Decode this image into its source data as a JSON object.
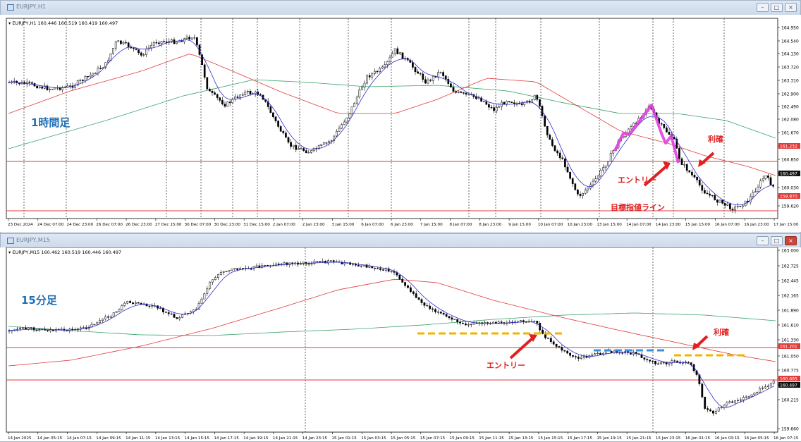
{
  "top_window": {
    "title": "EURJPY,H1",
    "symbol_info": "▾ EURJPY,H1  160.446 160.519 160.419 160.497",
    "timeframe_label": "1時間足",
    "price_axis": [
      "164.950",
      "164.540",
      "164.130",
      "163.720",
      "163.310",
      "162.900",
      "162.490",
      "162.080",
      "161.670",
      "161.232",
      "160.850",
      "160.497",
      "160.030",
      "159.870",
      "159.620"
    ],
    "highlighted_prices": {
      "red_line": "161.232",
      "current": "160.497",
      "target": "159.870"
    },
    "time_axis": [
      "23 Dec 2024",
      "24 Dec 07:00",
      "24 Dec 23:00",
      "26 Dec 07:00",
      "26 Dec 23:00",
      "27 Dec 15:00",
      "30 Dec 07:00",
      "30 Dec 23:00",
      "31 Dec 15:00",
      "2 Jan 07:00",
      "2 Jan 23:00",
      "3 Jan 15:00",
      "6 Jan 07:00",
      "6 Jan 23:00",
      "7 Jan 15:00",
      "8 Jan 07:00",
      "8 Jan 23:00",
      "9 Jan 15:00",
      "10 Jan 07:00",
      "10 Jan 23:00",
      "13 Jan 15:00",
      "14 Jan 07:00",
      "14 Jan 23:00",
      "15 Jan 15:00",
      "16 Jan 07:00",
      "16 Jan 23:00",
      "17 Jan 15:00"
    ],
    "annotations": {
      "entry": "エントリー",
      "take_profit": "利確",
      "target_line": "目標指値ライン"
    }
  },
  "bottom_window": {
    "title": "EURJPY,M15",
    "symbol_info": "▾ EURJPY,M15  160.462 160.519 160.446 160.497",
    "timeframe_label": "15分足",
    "price_axis": [
      "163.000",
      "162.725",
      "162.445",
      "162.165",
      "161.890",
      "161.610",
      "161.330",
      "161.201",
      "161.050",
      "160.775",
      "160.605",
      "160.497",
      "160.215",
      "159.660"
    ],
    "highlighted_prices": {
      "red_line": "161.201",
      "red_line_2": "160.605",
      "current": "160.497"
    },
    "time_axis": [
      "14 Jan 2025",
      "14 Jan 05:15",
      "14 Jan 07:15",
      "14 Jan 09:15",
      "14 Jan 11:15",
      "14 Jan 13:15",
      "14 Jan 15:15",
      "14 Jan 17:15",
      "14 Jan 19:15",
      "14 Jan 21:15",
      "14 Jan 23:15",
      "15 Jan 01:15",
      "15 Jan 03:15",
      "15 Jan 05:15",
      "15 Jan 07:15",
      "15 Jan 09:15",
      "15 Jan 11:15",
      "15 Jan 13:15",
      "15 Jan 15:15",
      "15 Jan 17:15",
      "15 Jan 19:15",
      "15 Jan 21:15",
      "15 Jan 23:15",
      "16 Jan 01:15",
      "16 Jan 03:15",
      "16 Jan 05:15",
      "16 Jan 07:15"
    ],
    "annotations": {
      "entry": "エントリー",
      "take_profit": "利確"
    }
  },
  "colors": {
    "ma_fast": "#2b2bcc",
    "ma_slow": "#e23a3a",
    "ma_long": "#3aa36a",
    "highlight": "#e040e0",
    "annotation": "#e02020",
    "label_blue": "#1f6fb5",
    "dash_orange": "#f0b400",
    "dash_blue": "#3a8fd8"
  }
}
